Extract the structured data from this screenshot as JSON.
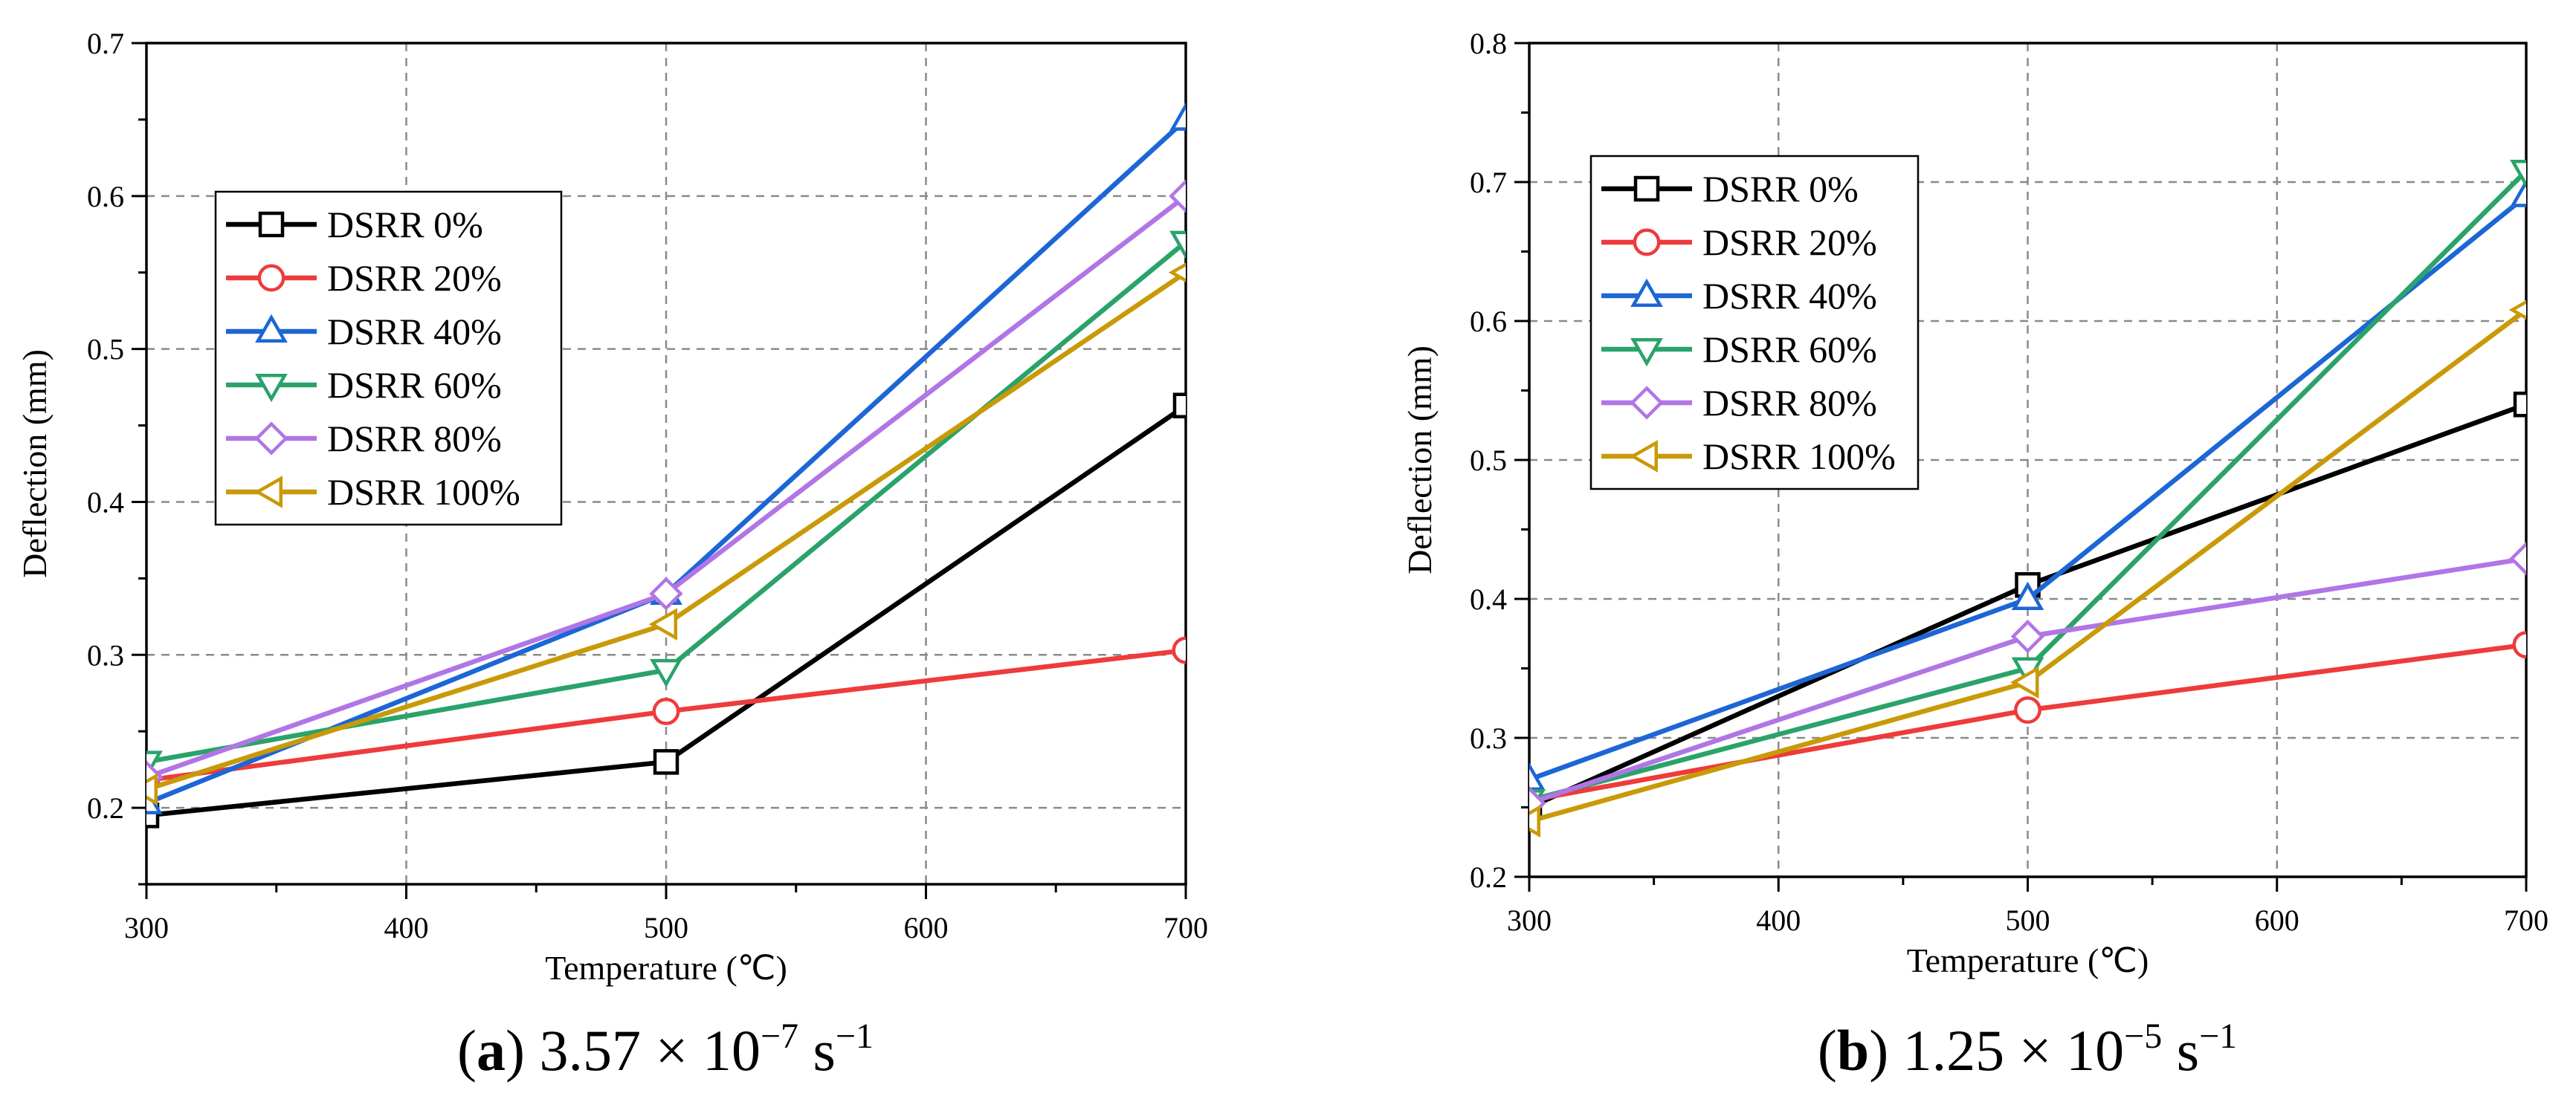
{
  "chart_data": [
    {
      "type": "line",
      "caption": {
        "letter": "a",
        "text": "3.57 × 10",
        "exp": "−7",
        "unit": " s",
        "unit_exp": "−1"
      },
      "xlabel": "Temperature (℃)",
      "ylabel": "Deflection (mm)",
      "x": [
        300,
        500,
        700
      ],
      "xlim": [
        300,
        700
      ],
      "ylim": [
        0.15,
        0.7
      ],
      "xticks": [
        300,
        400,
        500,
        600,
        700
      ],
      "yticks": [
        0.2,
        0.3,
        0.4,
        0.5,
        0.6,
        0.7
      ],
      "grid": true,
      "legend_position": "upper-left",
      "series": [
        {
          "name": "DSRR 0%",
          "marker": "square",
          "color": "#000000",
          "values": [
            0.195,
            0.23,
            0.463
          ]
        },
        {
          "name": "DSRR 20%",
          "marker": "circle",
          "color": "#ee3b3b",
          "values": [
            0.218,
            0.263,
            0.303
          ]
        },
        {
          "name": "DSRR 40%",
          "marker": "triangle-up",
          "color": "#1c66d6",
          "values": [
            0.203,
            0.34,
            0.65
          ]
        },
        {
          "name": "DSRR 60%",
          "marker": "triangle-down",
          "color": "#2aa36b",
          "values": [
            0.23,
            0.29,
            0.57
          ]
        },
        {
          "name": "DSRR 80%",
          "marker": "diamond",
          "color": "#b175e6",
          "values": [
            0.22,
            0.34,
            0.6
          ]
        },
        {
          "name": "DSRR 100%",
          "marker": "triangle-left",
          "color": "#c89a08",
          "values": [
            0.212,
            0.32,
            0.55
          ]
        }
      ]
    },
    {
      "type": "line",
      "caption": {
        "letter": "b",
        "text": "1.25 × 10",
        "exp": "−5",
        "unit": " s",
        "unit_exp": "−1"
      },
      "xlabel": "Temperature (℃)",
      "ylabel": "Deflection (mm)",
      "x": [
        300,
        500,
        700
      ],
      "xlim": [
        300,
        700
      ],
      "ylim": [
        0.2,
        0.8
      ],
      "xticks": [
        300,
        400,
        500,
        600,
        700
      ],
      "yticks": [
        0.2,
        0.3,
        0.4,
        0.5,
        0.6,
        0.7,
        0.8
      ],
      "grid": true,
      "legend_position": "upper-left",
      "series": [
        {
          "name": "DSRR 0%",
          "marker": "square",
          "color": "#000000",
          "values": [
            0.25,
            0.41,
            0.54
          ]
        },
        {
          "name": "DSRR 20%",
          "marker": "circle",
          "color": "#ee3b3b",
          "values": [
            0.255,
            0.32,
            0.367
          ]
        },
        {
          "name": "DSRR 40%",
          "marker": "triangle-up",
          "color": "#1c66d6",
          "values": [
            0.27,
            0.4,
            0.69
          ]
        },
        {
          "name": "DSRR 60%",
          "marker": "triangle-down",
          "color": "#2aa36b",
          "values": [
            0.255,
            0.35,
            0.708
          ]
        },
        {
          "name": "DSRR 80%",
          "marker": "diamond",
          "color": "#b175e6",
          "values": [
            0.253,
            0.373,
            0.429
          ]
        },
        {
          "name": "DSRR 100%",
          "marker": "triangle-left",
          "color": "#c89a08",
          "values": [
            0.24,
            0.34,
            0.608
          ]
        }
      ]
    }
  ]
}
